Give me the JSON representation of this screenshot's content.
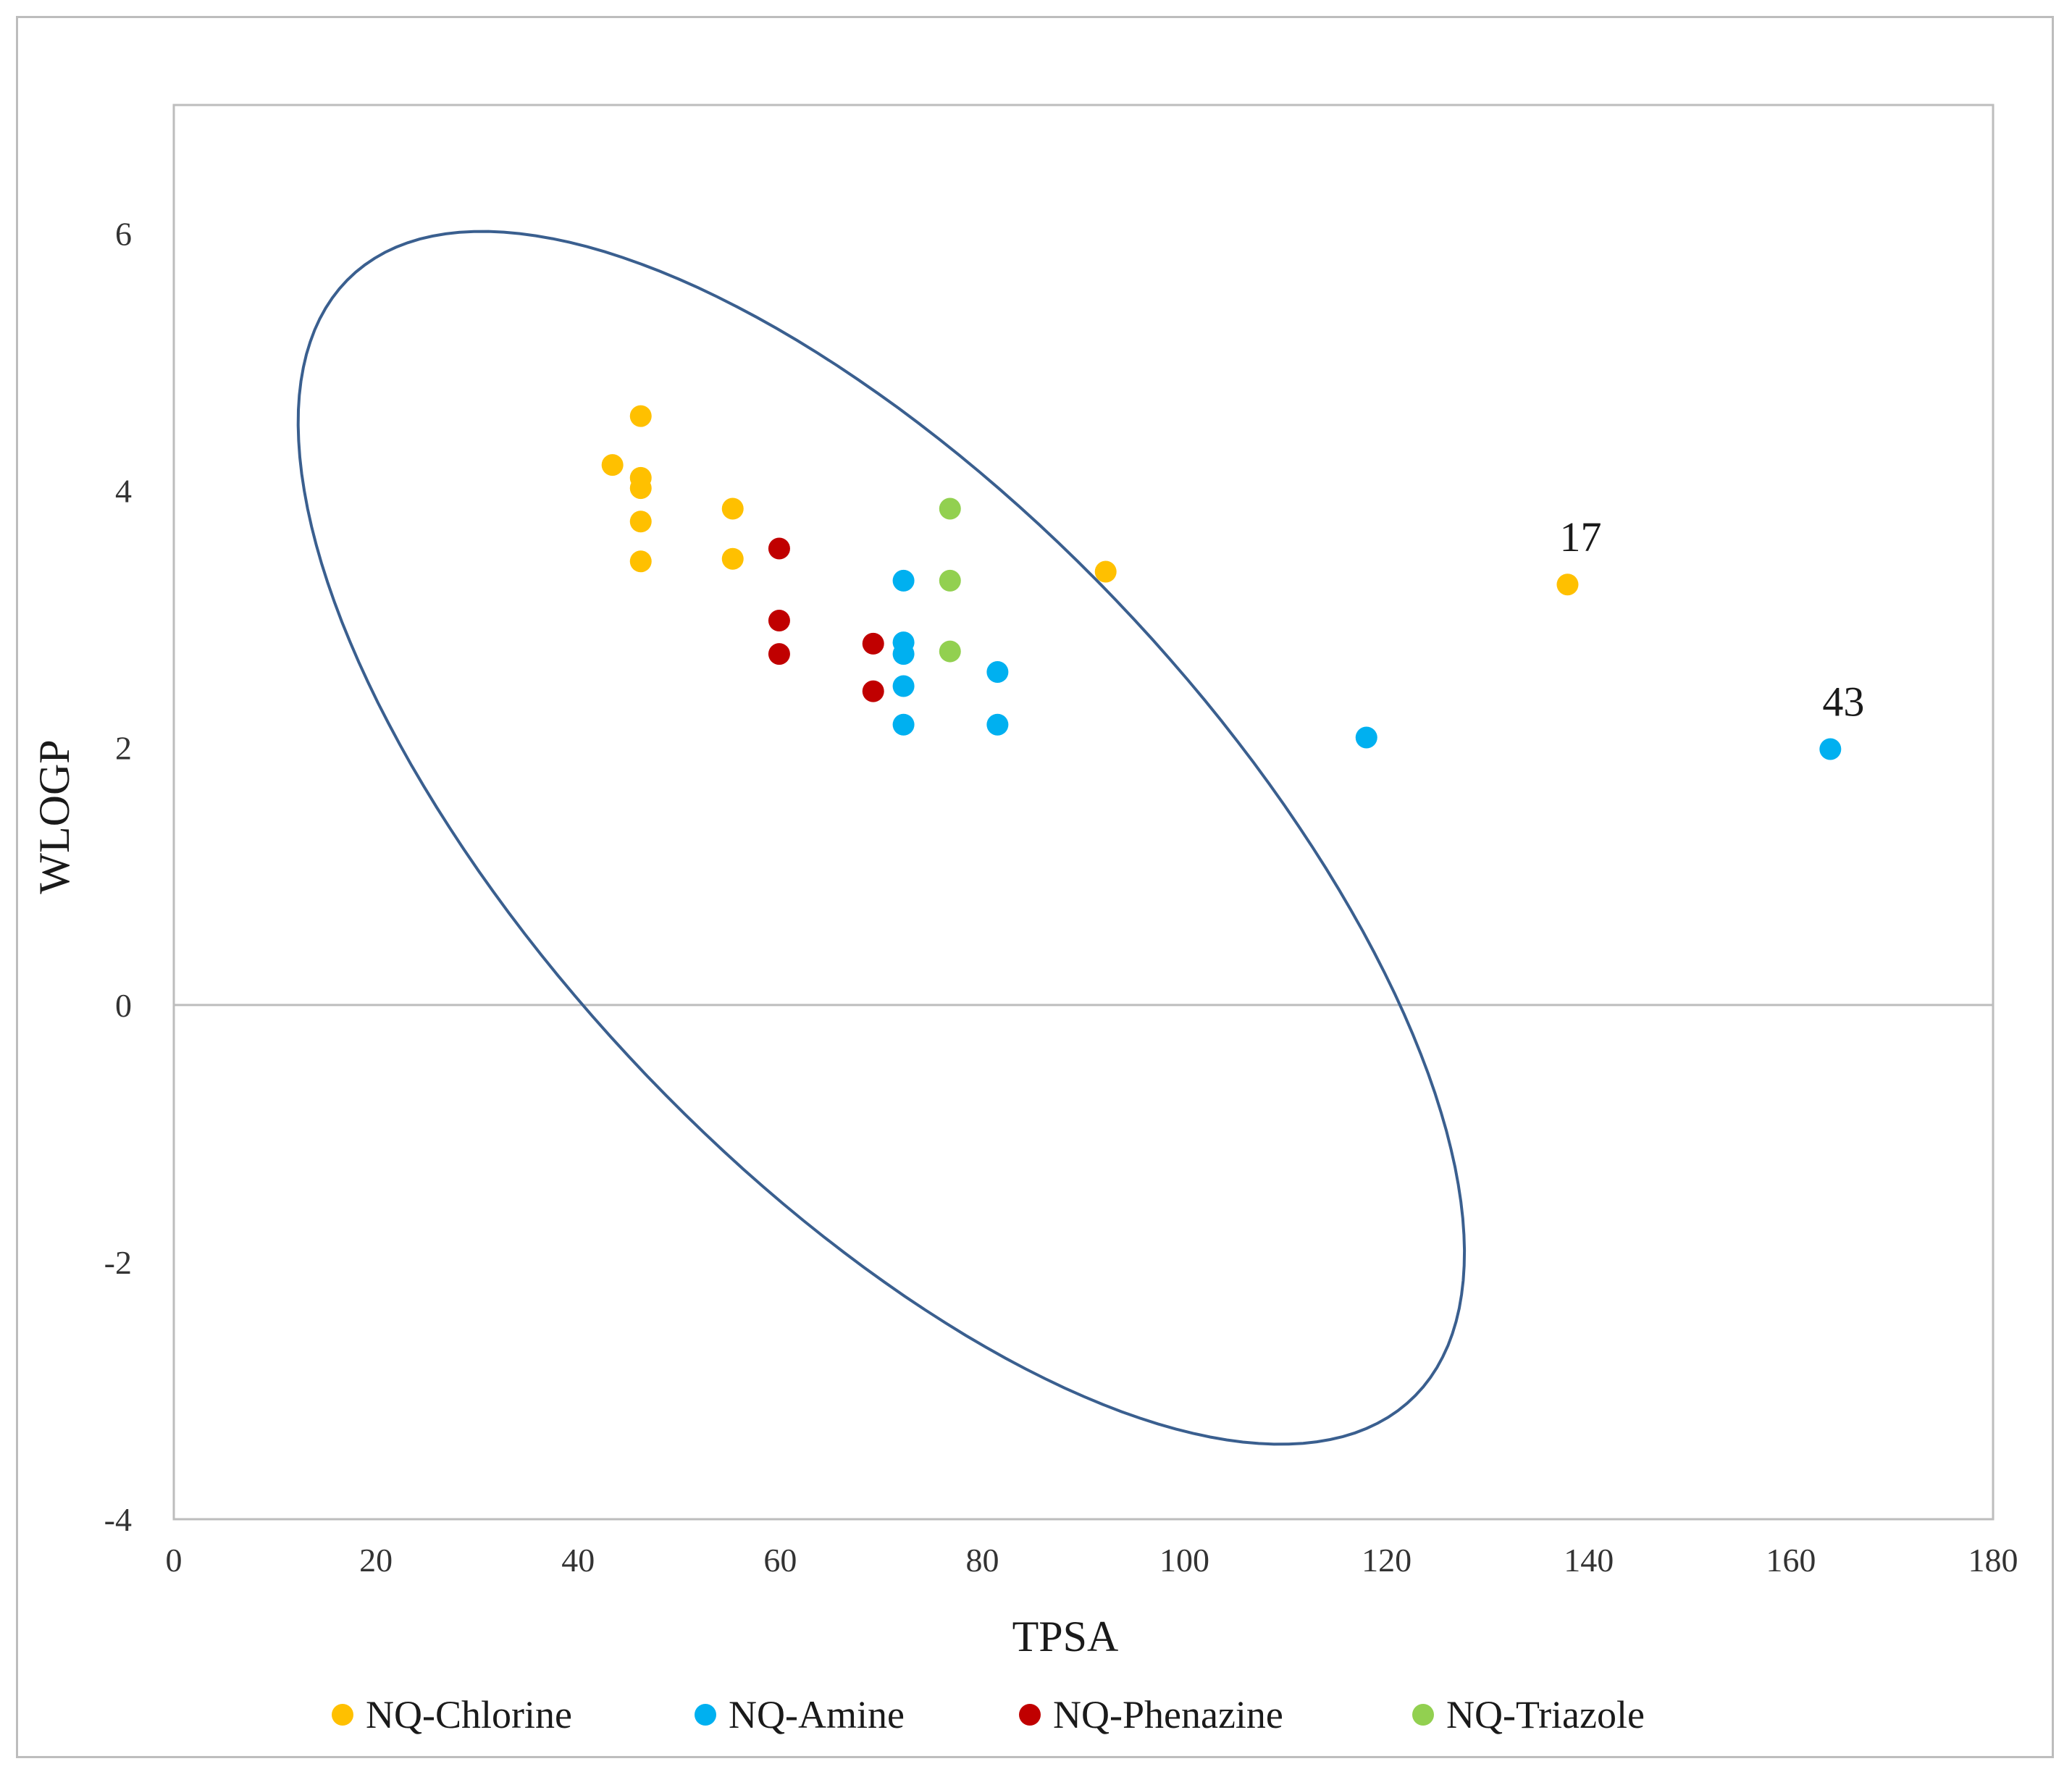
{
  "chart_data": {
    "type": "scatter",
    "title": "",
    "xlabel": "TPSA",
    "ylabel": "WLOGP",
    "xlim": [
      0,
      180
    ],
    "ylim": [
      -4,
      7
    ],
    "x_ticks": [
      0,
      20,
      40,
      60,
      80,
      100,
      120,
      140,
      160,
      180
    ],
    "y_ticks": [
      -4,
      -2,
      0,
      2,
      4,
      6
    ],
    "grid": false,
    "reference_lines": [
      {
        "axis": "y",
        "value": 0
      }
    ],
    "ellipse": {
      "description": "drug-likeness boundary (egg)",
      "center": [
        70,
        1.3
      ],
      "semi_axis_1": {
        "tpsa": 52,
        "wlogp": -4.4
      },
      "semi_axis_2": {
        "tpsa": -25,
        "wlogp": -1.7
      },
      "color": "#3a5f8f"
    },
    "series": [
      {
        "name": "NQ-Chlorine",
        "color": "#ffc000",
        "points": [
          {
            "x": 43.4,
            "y": 4.2
          },
          {
            "x": 46.2,
            "y": 4.58
          },
          {
            "x": 46.2,
            "y": 4.1
          },
          {
            "x": 46.2,
            "y": 4.02
          },
          {
            "x": 46.2,
            "y": 3.76
          },
          {
            "x": 46.2,
            "y": 3.45
          },
          {
            "x": 55.3,
            "y": 3.86
          },
          {
            "x": 55.3,
            "y": 3.47
          },
          {
            "x": 92.2,
            "y": 3.37
          },
          {
            "x": 137.9,
            "y": 3.27,
            "label": "17"
          }
        ]
      },
      {
        "name": "NQ-Amine",
        "color": "#00b0f0",
        "points": [
          {
            "x": 72.2,
            "y": 3.3
          },
          {
            "x": 72.2,
            "y": 2.82
          },
          {
            "x": 72.2,
            "y": 2.73
          },
          {
            "x": 72.2,
            "y": 2.48
          },
          {
            "x": 72.2,
            "y": 2.18
          },
          {
            "x": 81.5,
            "y": 2.59
          },
          {
            "x": 81.5,
            "y": 2.18
          },
          {
            "x": 118.0,
            "y": 2.08
          },
          {
            "x": 163.9,
            "y": 1.99,
            "label": "43"
          }
        ]
      },
      {
        "name": "NQ-Phenazine",
        "color": "#c00000",
        "points": [
          {
            "x": 59.9,
            "y": 3.55
          },
          {
            "x": 59.9,
            "y": 2.99
          },
          {
            "x": 59.9,
            "y": 2.73
          },
          {
            "x": 69.2,
            "y": 2.81
          },
          {
            "x": 69.2,
            "y": 2.44
          }
        ]
      },
      {
        "name": "NQ-Triazole",
        "color": "#92d050",
        "points": [
          {
            "x": 76.8,
            "y": 3.86
          },
          {
            "x": 76.8,
            "y": 3.3
          },
          {
            "x": 76.8,
            "y": 2.75
          }
        ]
      }
    ],
    "legend": {
      "position": "bottom"
    }
  }
}
